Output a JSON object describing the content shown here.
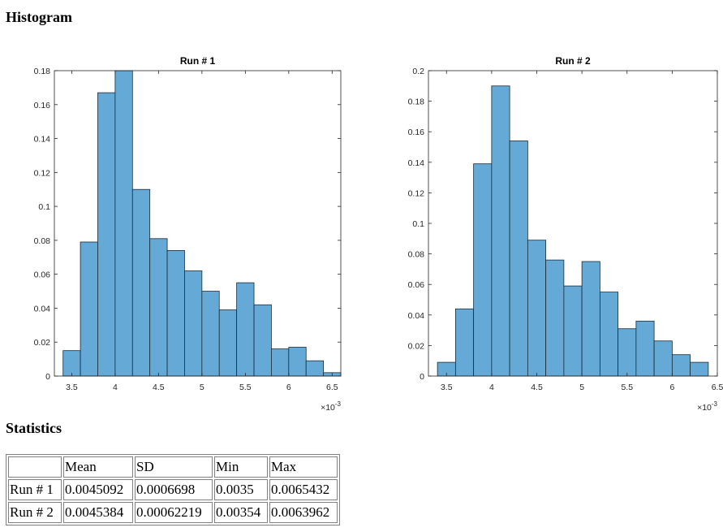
{
  "headings": {
    "histogram": "Histogram",
    "statistics": "Statistics"
  },
  "chart_data": [
    {
      "type": "bar",
      "title": "Run # 1",
      "xlabel": "",
      "ylabel": "",
      "x_multiplier": "×10-3",
      "bin_width": 0.2,
      "bin_starts": [
        3.4,
        3.6,
        3.8,
        4.0,
        4.2,
        4.4,
        4.6,
        4.8,
        5.0,
        5.2,
        5.4,
        5.6,
        5.8,
        6.0,
        6.2,
        6.4
      ],
      "values": [
        0.015,
        0.079,
        0.167,
        0.18,
        0.11,
        0.081,
        0.074,
        0.062,
        0.05,
        0.039,
        0.055,
        0.042,
        0.016,
        0.017,
        0.009,
        0.002
      ],
      "xlim": [
        3.3,
        6.6
      ],
      "ylim": [
        0,
        0.18
      ],
      "xticks": [
        3.5,
        4,
        4.5,
        5,
        5.5,
        6,
        6.5
      ],
      "xtick_labels": [
        "3.5",
        "4",
        "4.5",
        "5",
        "5.5",
        "6",
        "6.5"
      ],
      "yticks": [
        0,
        0.02,
        0.04,
        0.06,
        0.08,
        0.1,
        0.12,
        0.14,
        0.16,
        0.18
      ],
      "ytick_labels": [
        "0",
        "0.02",
        "0.04",
        "0.06",
        "0.08",
        "0.1",
        "0.12",
        "0.14",
        "0.16",
        "0.18"
      ],
      "bar_color": "#65a9d7",
      "edge_color": "#1b2b36",
      "grid": false
    },
    {
      "type": "bar",
      "title": "Run # 2",
      "xlabel": "",
      "ylabel": "",
      "x_multiplier": "×10-3",
      "bin_width": 0.2,
      "bin_starts": [
        3.4,
        3.6,
        3.8,
        4.0,
        4.2,
        4.4,
        4.6,
        4.8,
        5.0,
        5.2,
        5.4,
        5.6,
        5.8,
        6.0,
        6.2
      ],
      "values": [
        0.009,
        0.044,
        0.139,
        0.19,
        0.154,
        0.089,
        0.076,
        0.059,
        0.075,
        0.055,
        0.031,
        0.036,
        0.023,
        0.014,
        0.009
      ],
      "xlim": [
        3.3,
        6.5
      ],
      "ylim": [
        0,
        0.2
      ],
      "xticks": [
        3.5,
        4,
        4.5,
        5,
        5.5,
        6,
        6.5
      ],
      "xtick_labels": [
        "3.5",
        "4",
        "4.5",
        "5",
        "5.5",
        "6",
        "6.5"
      ],
      "yticks": [
        0,
        0.02,
        0.04,
        0.06,
        0.08,
        0.1,
        0.12,
        0.14,
        0.16,
        0.18,
        0.2
      ],
      "ytick_labels": [
        "0",
        "0.02",
        "0.04",
        "0.06",
        "0.08",
        "0.1",
        "0.12",
        "0.14",
        "0.16",
        "0.18",
        "0.2"
      ],
      "bar_color": "#65a9d7",
      "edge_color": "#1b2b36",
      "grid": false
    }
  ],
  "statistics": {
    "columns": [
      "",
      "Mean",
      "SD",
      "Min",
      "Max"
    ],
    "rows": [
      [
        "Run # 1",
        "0.0045092",
        "0.0006698",
        "0.0035",
        "0.0065432"
      ],
      [
        "Run # 2",
        "0.0045384",
        "0.00062219",
        "0.00354",
        "0.0063962"
      ]
    ]
  }
}
